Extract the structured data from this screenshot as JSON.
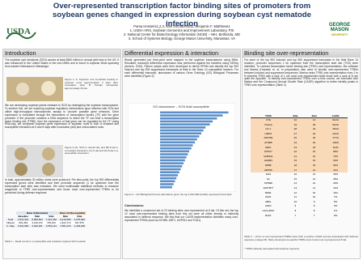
{
  "header": {
    "title": "Over-represented transcription factor binding sites of promoters from soybean genes changed in expression during soybean cyst nematode infection",
    "authors": "Parsa Hosseini1,2,3, Ivan Ovcharenko2, Benjamin F. Matthews1",
    "affiliations": [
      "1. USDA-ARS, Soybean Genomics and Improvement Laboratory, PSI",
      "2. National Center for Biotechnology Information (NCBI) – NIH, Bethesda, MD",
      "3. School of Systems Biology, George Mason University, Manassas, VA"
    ],
    "logo_left": "USDA",
    "logo_right": [
      "GEORGE",
      "MASON",
      "UNIVERSITY"
    ]
  },
  "intro": {
    "heading": "Introduction",
    "p1": "The soybean cyst nematode (SCN) causes at least $600 million in annual yield loss in the US. It was introduced in the United States in the mid-1950s and is found in soybean fields spanning from eastern Nebraska to Mississippi.",
    "fig1_caption": "Figure 1. A: Soybean root nematode feeding in soybean roots approximately 3 days after inoculation (dai). B: Female nematodes approximately 25 dai.",
    "p2": "We are developing soybean plants resistant to SCN by redesigning the soybean transcriptome. To achieve this, we are exploring soybean regulatory mechanisms upon infection with SCN and utilize high-throughput transcriptomic assays to uncover possible gene networks. Gene expression is modulated through the interactions of transcription factors (TF) with the gene promoter. If the promoter contains a DNA sequence to which the TF can bind a transcription factor binding site (TFBS), then the expression of that gene can be regulated by the TF. Using RNA-seq, we compared soybean gene expression in soybean roots in both a resistant and susceptible interaction at 6 and 8 days after inoculation (dai) and uninoculated roots.",
    "fig2_caption": "Figure 2 (A). SCN in race14 dai; and (B) 8 dai in a resistant interaction; (C) 6 dai and (D) 8 dai in a susceptible interaction.",
    "p3": "In total, approximately 30 million reads were produced. Per time-point, the top 500 differentially expressed genes were identified and their promoter sequence (1 kb upstream from the transcription start site) was extracted. We used multivariate statistical methods to measure magnitude of TFBS over-representation and those most over-represented TFBSs to be perceived during defense response.",
    "table": {
      "groups": [
        "Race 3 (Resistant)",
        "Race 14 (Susceptible)"
      ],
      "columns": [
        "Baseline",
        "8dai",
        "6dai",
        "8dai",
        "6dai"
      ],
      "rows": [
        [
          "Total",
          "2,541,901",
          "8,069,844",
          "7,310,462",
          "9,210,089",
          "4,075,966"
        ],
        [
          "Filtered",
          "601,453",
          "3,130,372",
          "745,103",
          "1,624,774",
          "637,675"
        ],
        [
          "U. Map",
          "5,201,884",
          "4,640,201",
          "6,553,141",
          "7,584,125",
          "2,393,208"
        ]
      ]
    },
    "table_caption": "Table 1 – Read counts in a susceptible and resistant soybean SCN reaction"
  },
  "middle": {
    "heading": "Differential expression & interaction",
    "p1": "Reads generated per time-point were mapped to the soybean transcriptome using BWA. Resultant, transcript differential expression was performed against the baseline using DESeq (Anders, 2010). Python scripts were then developed to derive RPKM and identify the top 500 induced and top 500 suppressed transcripts at 8dai in the Race 14 susceptible reaction. For each differential transcript, abundance of various Gene Ontology (GO) Biological Processes were identified (Figure 3).",
    "chart": {
      "type": "bar",
      "title": "GO abundance – SCN 8dai susceptible",
      "values": [
        96,
        88,
        80,
        74,
        70,
        64,
        61,
        58,
        55,
        52,
        49,
        46,
        44,
        41,
        39,
        37,
        35,
        33,
        31,
        29,
        27,
        25,
        23,
        21,
        19,
        17
      ],
      "color": "#5b8fc9",
      "xlim": [
        0,
        100
      ]
    },
    "fig3_caption": "Figure 3 – GO Biological Process abundance given the top 1,000 differentially expressed transcripts.",
    "conclusions_heading": "Conclusions:",
    "conclusions": "We identified a conserved set of 23 binding sites over-represented at 8 dai. Of this set, the top 12 most over-represented binding sites from this set were all either directly or indirectly associated in defense response. We find that our CAGR-implementation identifies many over-represented TFBSs (such as ATHB5, ARF1, bZIP911 and TGA1)."
  },
  "right": {
    "heading": "Binding site over-representation",
    "p1": "For each of the top 500 induced and top 500 suppressed transcripts in the 8dai Race 14 reaction, promoter sequences 1 kb upstream from the transcription start site (TSS) were identified. To contrast transcription factor binding site (TFBS) over-representation, the software tool Marina (Hosseini et. al, in preparation) was used to identify over-represented TFBSs between induced and suppressed sequences. Marina ranks TFBS over-representation from 1 to N whereby TFBS with a rank of 1 are most over-represented while those with a rank of N are quite the opposite. To identify over-represented TFBSs over a time course, we extended both Marina and the Compound Annual Growth Rate (CAGR) algorithm to better identify peaks in TFBS over-representation (Table 2).",
    "table": {
      "columns": [
        "TFBS",
        "8dai",
        "6dai",
        "CAGR"
      ],
      "rows": [
        [
          "VTE",
          "32",
          "13",
          "914%"
        ],
        [
          "TGA1A",
          "29",
          "25",
          "510%"
        ],
        [
          "GT-1",
          "28",
          "23",
          "351%"
        ],
        [
          "LIBOX",
          "27",
          "22",
          "221%"
        ],
        [
          "AtMYB2",
          "25",
          "20",
          "177%"
        ],
        [
          "ATHB5",
          "24",
          "20",
          "139%"
        ],
        [
          "ARF1",
          "23",
          "18",
          "111%"
        ],
        [
          "MYB77",
          "22",
          "16",
          "86%"
        ],
        [
          "bZIP911",
          "21",
          "16",
          "72%"
        ],
        [
          "HAHB4",
          "19",
          "15",
          "63%"
        ],
        [
          "DPBF",
          "18",
          "15",
          "52%"
        ],
        [
          "bZIP55",
          "17",
          "14",
          "41%"
        ],
        [
          "Dof3",
          "16",
          "13",
          "33%"
        ],
        [
          "G1",
          "15",
          "12",
          "25%"
        ],
        [
          "MYB98",
          "14",
          "12",
          "20%"
        ],
        [
          "AtMYB77",
          "13",
          "11",
          "14%"
        ],
        [
          "BZR1",
          "12",
          "10",
          "11%"
        ],
        [
          "ZAP1",
          "11",
          "10",
          "7%"
        ],
        [
          "ABF1",
          "10",
          "9",
          "5%"
        ],
        [
          "AGP1",
          "9",
          "8",
          "3%"
        ],
        [
          "CArG-BOX",
          "8",
          "8",
          "1%"
        ],
        [
          "RAV1",
          "7",
          "7",
          "0%"
        ]
      ]
    },
    "table_caption": "Table 2 – Union of over-represented TFBSs have both a positive CAGR and are associated with defense response (orange fill). Many development-specific TFBSs were found over-represented at 8 dai.",
    "footnote": "* TFBS indirectly associated with defense response"
  }
}
